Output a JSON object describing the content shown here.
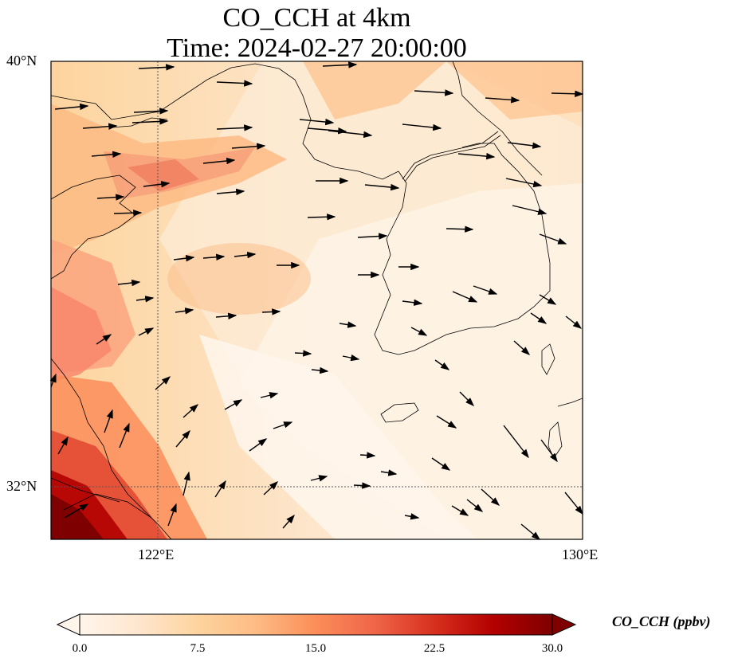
{
  "title": "CO_CCH at 4km",
  "subtitle": "Time: 2024-02-27 20:00:00",
  "map": {
    "lat_labels": [
      "40°N",
      "32°N"
    ],
    "lon_labels": [
      "122°E",
      "130°E"
    ],
    "lat_range": [
      31,
      40
    ],
    "lon_range": [
      120,
      130
    ],
    "gridlines": [
      {
        "type": "lon",
        "value": 122
      },
      {
        "type": "lat",
        "value": 32
      }
    ],
    "field_colors": {
      "low": "#fff5eb",
      "mid": "#fdd49e",
      "high": "#ef6548",
      "max": "#7f0000"
    }
  },
  "colorbar": {
    "label": "CO_CCH (ppbv)",
    "ticks": [
      "0.0",
      "7.5",
      "15.0",
      "22.5",
      "30.0"
    ],
    "min": 0,
    "max": 30,
    "colors": [
      "#fff5eb",
      "#fee6ce",
      "#fdd49e",
      "#fdbb84",
      "#fc8d59",
      "#ef6548",
      "#d7301f",
      "#b30000",
      "#7f0000"
    ]
  }
}
